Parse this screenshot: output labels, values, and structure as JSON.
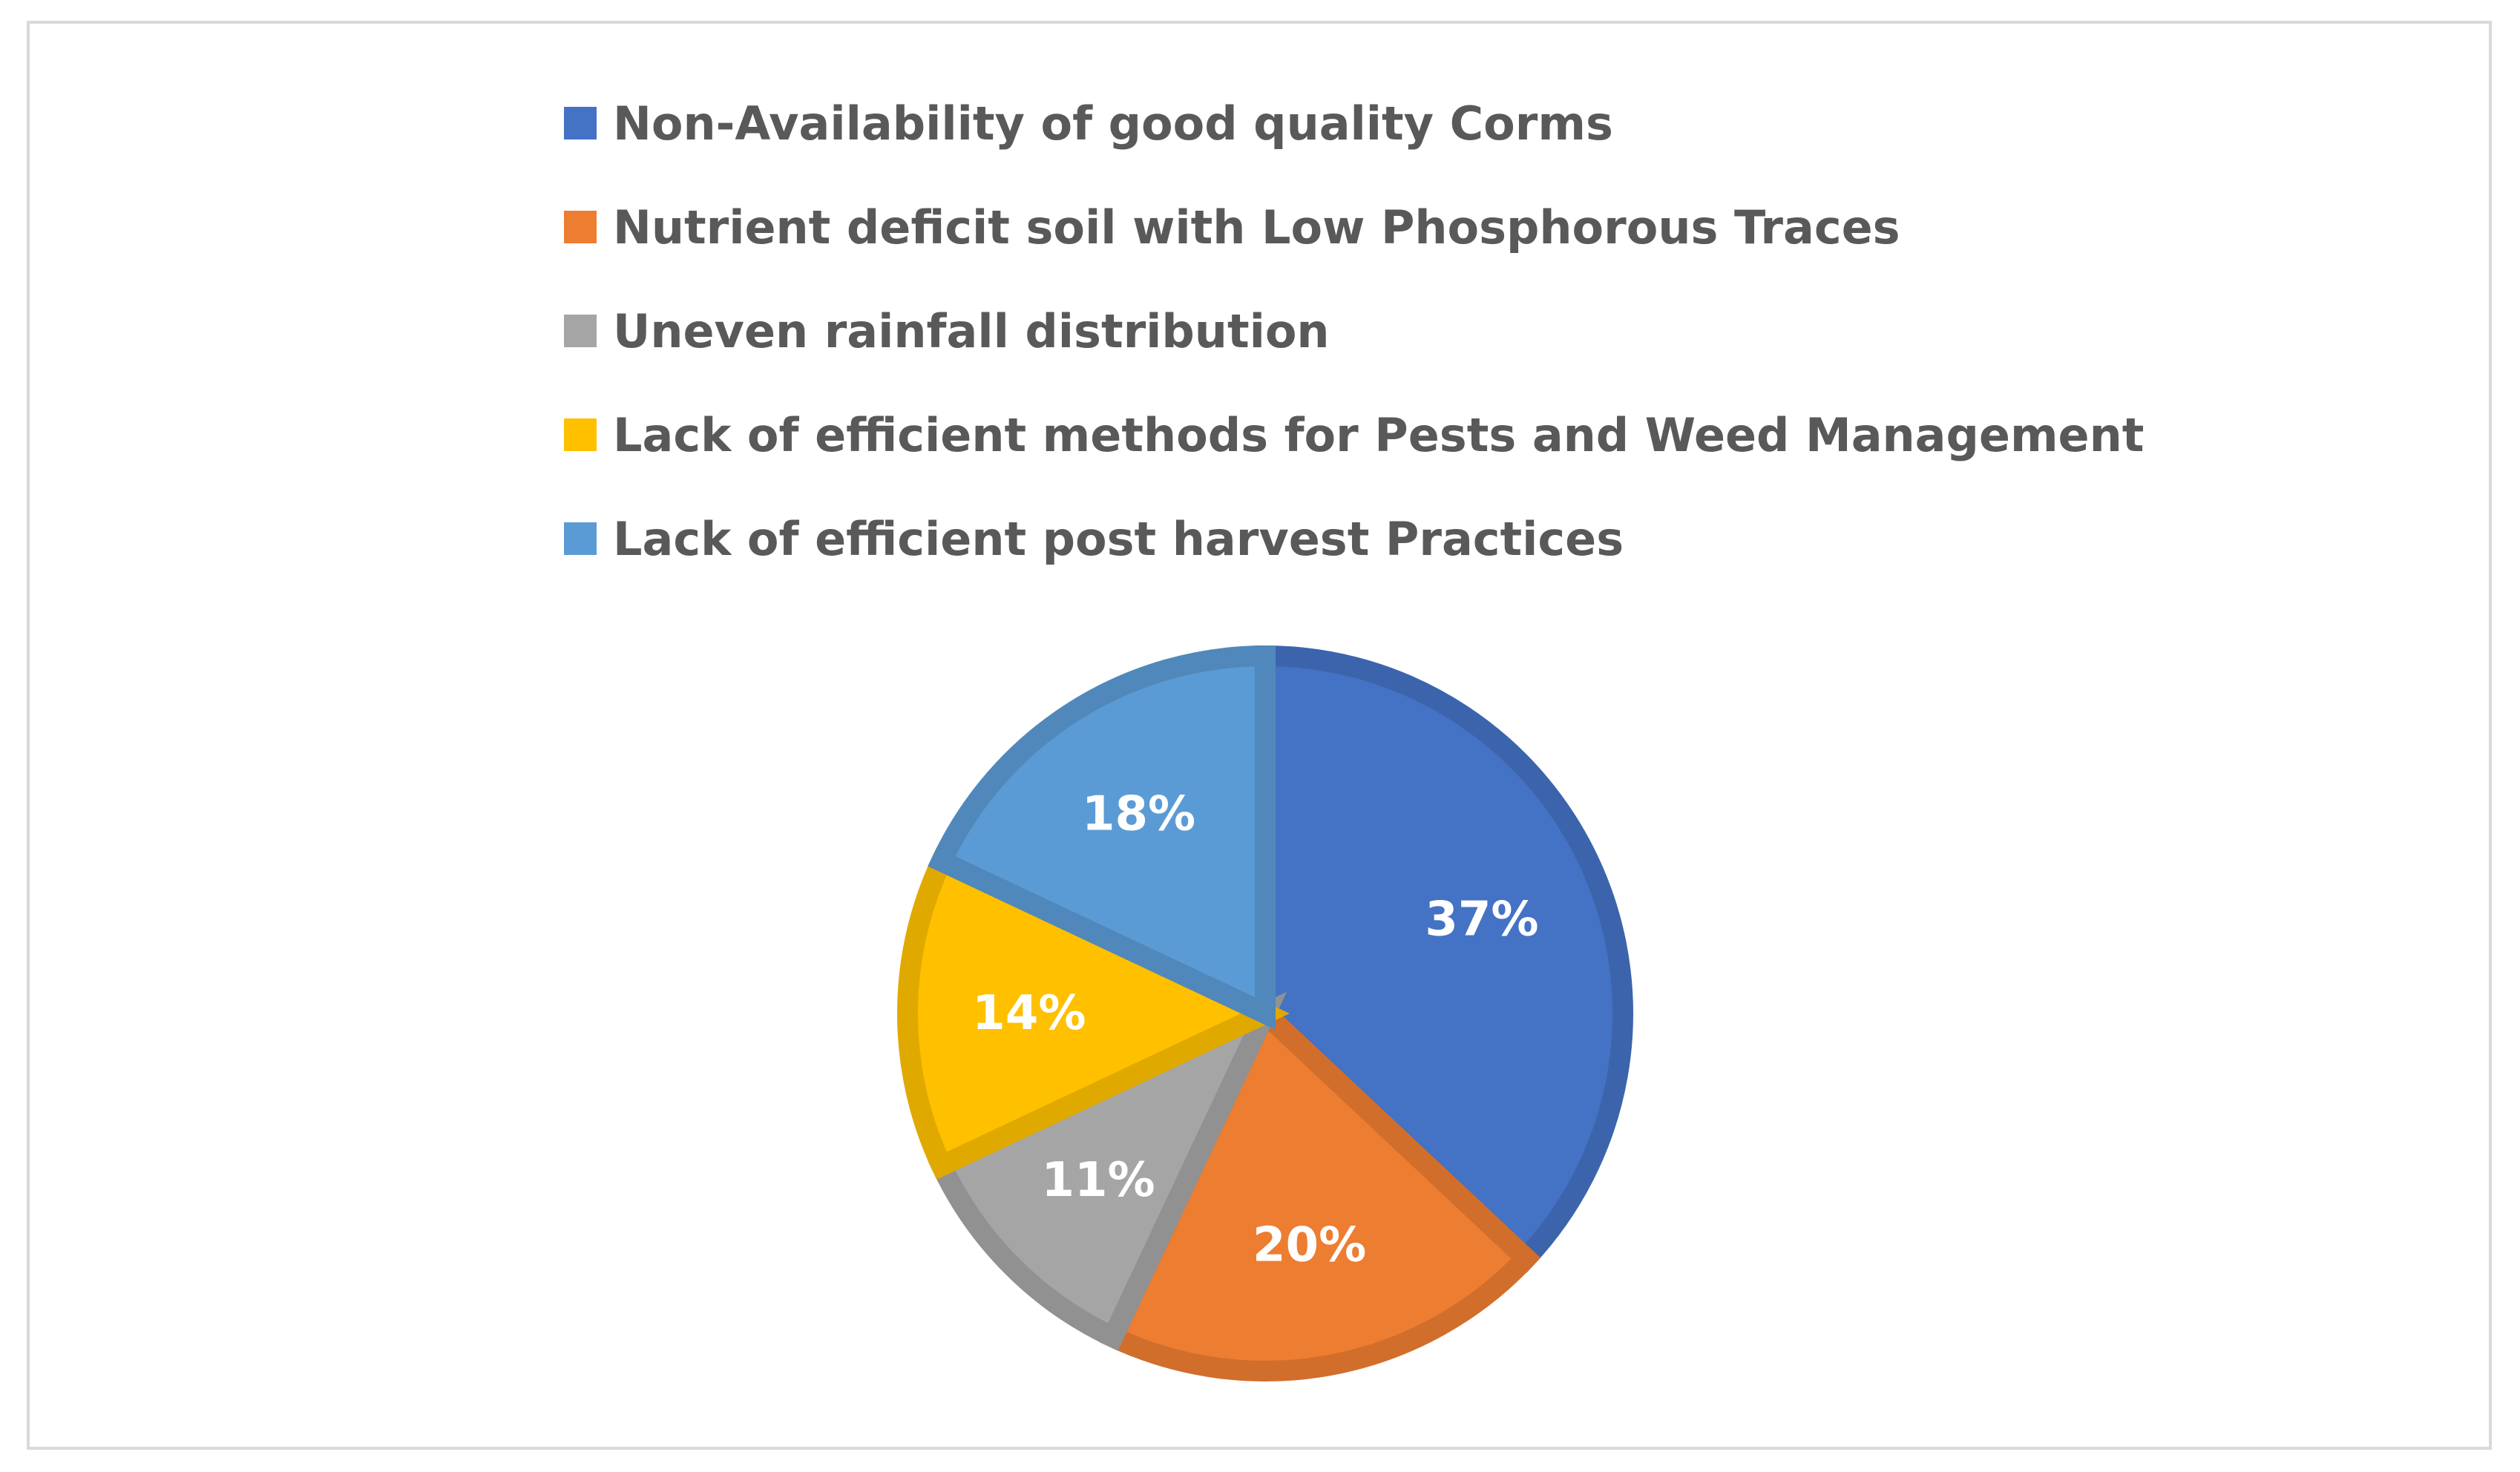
{
  "chart_data": {
    "type": "pie",
    "title": "",
    "legend_position": "top",
    "start_angle_deg": 0,
    "direction": "clockwise",
    "slices": [
      {
        "label": "Non-Availability of good quality Corms",
        "value": 37,
        "display": "37%",
        "color": "#4472C4"
      },
      {
        "label": "Nutrient deficit soil with Low Phosphorous Traces",
        "value": 20,
        "display": "20%",
        "color": "#ED7D31"
      },
      {
        "label": "Uneven rainfall distribution",
        "value": 11,
        "display": "11%",
        "color": "#A5A5A5"
      },
      {
        "label": "Lack of efficient methods for Pests and Weed Management",
        "value": 14,
        "display": "14%",
        "color": "#FFC000"
      },
      {
        "label": "Lack of efficient post harvest Practices",
        "value": 18,
        "display": "18%",
        "color": "#5B9BD5"
      }
    ]
  }
}
